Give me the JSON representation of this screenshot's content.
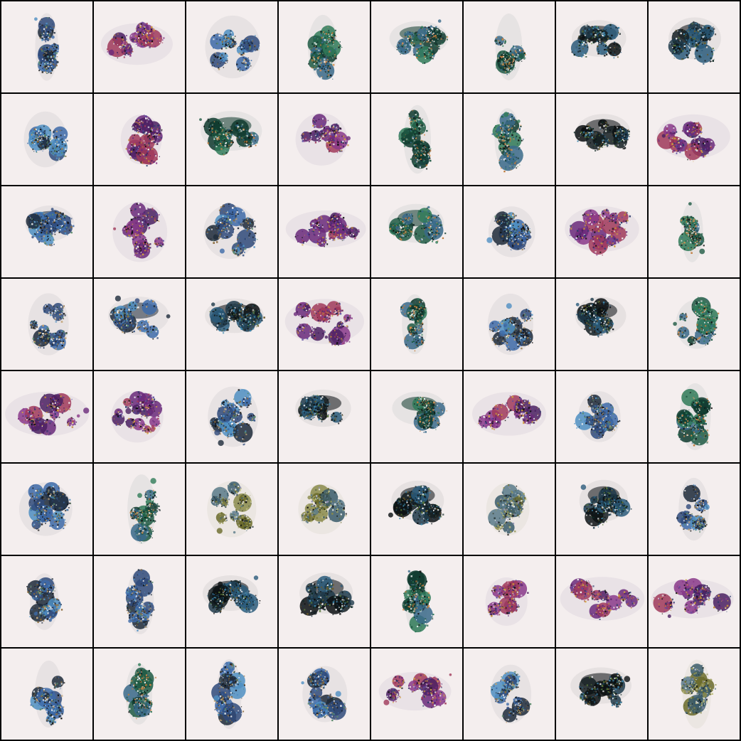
{
  "grid": {
    "rows": 8,
    "cols": 8,
    "background": "#000000",
    "tile_background": "#f4eeee",
    "palettes": {
      "blue": [
        "#1d2a3a",
        "#2f4a7a",
        "#3d6aa8",
        "#4f8fc2",
        "#8a6a3a",
        "#2a2a2a",
        "#5a8a6a",
        "#c0a070"
      ],
      "green": [
        "#0e3a2e",
        "#1f5a44",
        "#2f7a58",
        "#3a6a8a",
        "#c07a3a",
        "#1a2a2a",
        "#7aa090",
        "#d89050"
      ],
      "purple": [
        "#4a2060",
        "#6a2a7a",
        "#8a3a8a",
        "#a03a5a",
        "#c08a3a",
        "#2a3a6a",
        "#d0a040",
        "#5a4aa0"
      ],
      "dark": [
        "#0a0f12",
        "#141e22",
        "#1e3a4a",
        "#2a5a7a",
        "#3f8ab0",
        "#5a7a3a",
        "#6a5a2a",
        "#0f2a24"
      ],
      "olive": [
        "#6a6a2a",
        "#8a8a4a",
        "#3a5a6a",
        "#5a7a8a",
        "#a0a060",
        "#2a3a3a",
        "#9090b0",
        "#c0c080"
      ]
    },
    "tiles": [
      {
        "shape": "column",
        "palette": "blue"
      },
      {
        "shape": "wide",
        "palette": "purple"
      },
      {
        "shape": "blob",
        "palette": "blue"
      },
      {
        "shape": "column",
        "palette": "green"
      },
      {
        "shape": "bowl",
        "palette": "green"
      },
      {
        "shape": "column",
        "palette": "green"
      },
      {
        "shape": "bowl",
        "palette": "dark"
      },
      {
        "shape": "bowl",
        "palette": "dark"
      },
      {
        "shape": "blob",
        "palette": "blue"
      },
      {
        "shape": "blob",
        "palette": "purple"
      },
      {
        "shape": "bowl",
        "palette": "green"
      },
      {
        "shape": "blob",
        "palette": "purple"
      },
      {
        "shape": "column",
        "palette": "green"
      },
      {
        "shape": "column",
        "palette": "green"
      },
      {
        "shape": "bowl",
        "palette": "dark"
      },
      {
        "shape": "wide",
        "palette": "purple"
      },
      {
        "shape": "bowl",
        "palette": "blue"
      },
      {
        "shape": "blob",
        "palette": "purple"
      },
      {
        "shape": "blob",
        "palette": "blue"
      },
      {
        "shape": "wide",
        "palette": "purple"
      },
      {
        "shape": "bowl",
        "palette": "green"
      },
      {
        "shape": "blob",
        "palette": "blue"
      },
      {
        "shape": "wide",
        "palette": "purple"
      },
      {
        "shape": "column",
        "palette": "green"
      },
      {
        "shape": "blob",
        "palette": "blue"
      },
      {
        "shape": "bowl",
        "palette": "blue"
      },
      {
        "shape": "bowl",
        "palette": "dark"
      },
      {
        "shape": "wide",
        "palette": "purple"
      },
      {
        "shape": "column",
        "palette": "green"
      },
      {
        "shape": "blob",
        "palette": "blue"
      },
      {
        "shape": "bowl",
        "palette": "dark"
      },
      {
        "shape": "blob",
        "palette": "green"
      },
      {
        "shape": "wide",
        "palette": "purple"
      },
      {
        "shape": "blob",
        "palette": "purple"
      },
      {
        "shape": "blob",
        "palette": "blue"
      },
      {
        "shape": "bowl",
        "palette": "dark"
      },
      {
        "shape": "bowl",
        "palette": "green"
      },
      {
        "shape": "wide",
        "palette": "purple"
      },
      {
        "shape": "blob",
        "palette": "blue"
      },
      {
        "shape": "column",
        "palette": "green"
      },
      {
        "shape": "blob",
        "palette": "blue"
      },
      {
        "shape": "column",
        "palette": "green"
      },
      {
        "shape": "blob",
        "palette": "olive"
      },
      {
        "shape": "blob",
        "palette": "olive"
      },
      {
        "shape": "bowl",
        "palette": "dark"
      },
      {
        "shape": "blob",
        "palette": "olive"
      },
      {
        "shape": "bowl",
        "palette": "dark"
      },
      {
        "shape": "column",
        "palette": "blue"
      },
      {
        "shape": "column",
        "palette": "blue"
      },
      {
        "shape": "column",
        "palette": "blue"
      },
      {
        "shape": "bowl",
        "palette": "dark"
      },
      {
        "shape": "bowl",
        "palette": "dark"
      },
      {
        "shape": "column",
        "palette": "green"
      },
      {
        "shape": "blob",
        "palette": "purple"
      },
      {
        "shape": "wide",
        "palette": "purple"
      },
      {
        "shape": "wide",
        "palette": "purple"
      },
      {
        "shape": "column",
        "palette": "blue"
      },
      {
        "shape": "column",
        "palette": "green"
      },
      {
        "shape": "column",
        "palette": "blue"
      },
      {
        "shape": "blob",
        "palette": "blue"
      },
      {
        "shape": "wide",
        "palette": "purple"
      },
      {
        "shape": "blob",
        "palette": "blue"
      },
      {
        "shape": "bowl",
        "palette": "dark"
      },
      {
        "shape": "column",
        "palette": "olive"
      }
    ]
  }
}
